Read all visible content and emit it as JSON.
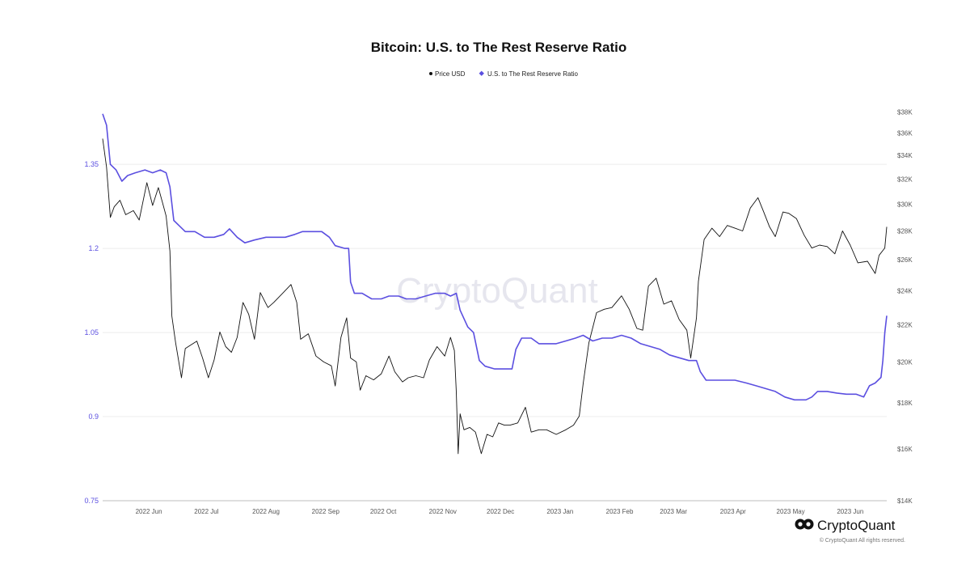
{
  "chart_data": {
    "type": "line",
    "title": "Bitcoin: U.S. to The Rest Reserve Ratio",
    "legend": [
      {
        "name": "Price USD",
        "color": "#111111"
      },
      {
        "name": "U.S. to The Rest Reserve Ratio",
        "color": "#5b4fe0"
      }
    ],
    "x_domain": [
      "2022-05-08",
      "2023-06-20"
    ],
    "x_ticks": [
      {
        "date": "2022-06-01",
        "label": "2022 Jun"
      },
      {
        "date": "2022-07-01",
        "label": "2022 Jul"
      },
      {
        "date": "2022-08-01",
        "label": "2022 Aug"
      },
      {
        "date": "2022-09-01",
        "label": "2022 Sep"
      },
      {
        "date": "2022-10-01",
        "label": "2022 Oct"
      },
      {
        "date": "2022-11-01",
        "label": "2022 Nov"
      },
      {
        "date": "2022-12-01",
        "label": "2022 Dec"
      },
      {
        "date": "2023-01-01",
        "label": "2023 Jan"
      },
      {
        "date": "2023-02-01",
        "label": "2023 Feb"
      },
      {
        "date": "2023-03-01",
        "label": "2023 Mar"
      },
      {
        "date": "2023-04-01",
        "label": "2023 Apr"
      },
      {
        "date": "2023-05-01",
        "label": "2023 May"
      },
      {
        "date": "2023-06-01",
        "label": "2023 Jun"
      }
    ],
    "y_left": {
      "ylim": [
        0.75,
        1.47
      ],
      "ticks": [
        {
          "value": 0.75,
          "label": "0.75"
        },
        {
          "value": 0.9,
          "label": "0.9"
        },
        {
          "value": 1.05,
          "label": "1.05"
        },
        {
          "value": 1.2,
          "label": "1.2"
        },
        {
          "value": 1.35,
          "label": "1.35"
        }
      ],
      "color": "#5b4fe0"
    },
    "y_right": {
      "scale": "log",
      "ylim": [
        14000,
        39500
      ],
      "ticks": [
        {
          "value": 14000,
          "label": "$14K"
        },
        {
          "value": 16000,
          "label": "$16K"
        },
        {
          "value": 18000,
          "label": "$18K"
        },
        {
          "value": 20000,
          "label": "$20K"
        },
        {
          "value": 22000,
          "label": "$22K"
        },
        {
          "value": 24000,
          "label": "$24K"
        },
        {
          "value": 26000,
          "label": "$26K"
        },
        {
          "value": 28000,
          "label": "$28K"
        },
        {
          "value": 30000,
          "label": "$30K"
        },
        {
          "value": 32000,
          "label": "$32K"
        },
        {
          "value": 34000,
          "label": "$34K"
        },
        {
          "value": 36000,
          "label": "$36K"
        },
        {
          "value": 38000,
          "label": "$38K"
        }
      ]
    },
    "grid": "horizontal",
    "legend_position": "top-center",
    "series": [
      {
        "name": "Price USD",
        "axis": "right",
        "color": "#111111",
        "points": [
          [
            "2022-05-08",
            35500
          ],
          [
            "2022-05-10",
            33000
          ],
          [
            "2022-05-12",
            29000
          ],
          [
            "2022-05-14",
            29800
          ],
          [
            "2022-05-17",
            30300
          ],
          [
            "2022-05-20",
            29200
          ],
          [
            "2022-05-24",
            29500
          ],
          [
            "2022-05-27",
            28800
          ],
          [
            "2022-05-31",
            31700
          ],
          [
            "2022-06-03",
            29900
          ],
          [
            "2022-06-06",
            31300
          ],
          [
            "2022-06-08",
            30200
          ],
          [
            "2022-06-10",
            29100
          ],
          [
            "2022-06-12",
            26600
          ],
          [
            "2022-06-13",
            22500
          ],
          [
            "2022-06-15",
            21000
          ],
          [
            "2022-06-18",
            19200
          ],
          [
            "2022-06-20",
            20700
          ],
          [
            "2022-06-23",
            20900
          ],
          [
            "2022-06-26",
            21100
          ],
          [
            "2022-06-29",
            20200
          ],
          [
            "2022-07-02",
            19200
          ],
          [
            "2022-07-05",
            20100
          ],
          [
            "2022-07-08",
            21600
          ],
          [
            "2022-07-11",
            20800
          ],
          [
            "2022-07-14",
            20500
          ],
          [
            "2022-07-17",
            21300
          ],
          [
            "2022-07-20",
            23300
          ],
          [
            "2022-07-23",
            22600
          ],
          [
            "2022-07-26",
            21200
          ],
          [
            "2022-07-29",
            23900
          ],
          [
            "2022-08-02",
            23000
          ],
          [
            "2022-08-05",
            23300
          ],
          [
            "2022-08-10",
            23900
          ],
          [
            "2022-08-14",
            24400
          ],
          [
            "2022-08-17",
            23300
          ],
          [
            "2022-08-19",
            21200
          ],
          [
            "2022-08-23",
            21500
          ],
          [
            "2022-08-27",
            20300
          ],
          [
            "2022-08-31",
            20000
          ],
          [
            "2022-09-04",
            19800
          ],
          [
            "2022-09-06",
            18800
          ],
          [
            "2022-09-09",
            21300
          ],
          [
            "2022-09-12",
            22400
          ],
          [
            "2022-09-14",
            20200
          ],
          [
            "2022-09-17",
            20000
          ],
          [
            "2022-09-19",
            18600
          ],
          [
            "2022-09-22",
            19300
          ],
          [
            "2022-09-26",
            19100
          ],
          [
            "2022-09-30",
            19400
          ],
          [
            "2022-10-04",
            20300
          ],
          [
            "2022-10-07",
            19500
          ],
          [
            "2022-10-11",
            19000
          ],
          [
            "2022-10-14",
            19200
          ],
          [
            "2022-10-18",
            19300
          ],
          [
            "2022-10-22",
            19200
          ],
          [
            "2022-10-25",
            20100
          ],
          [
            "2022-10-29",
            20800
          ],
          [
            "2022-11-02",
            20300
          ],
          [
            "2022-11-05",
            21300
          ],
          [
            "2022-11-07",
            20600
          ],
          [
            "2022-11-08",
            18500
          ],
          [
            "2022-11-09",
            15800
          ],
          [
            "2022-11-10",
            17500
          ],
          [
            "2022-11-12",
            16800
          ],
          [
            "2022-11-15",
            16900
          ],
          [
            "2022-11-18",
            16700
          ],
          [
            "2022-11-21",
            15800
          ],
          [
            "2022-11-24",
            16600
          ],
          [
            "2022-11-27",
            16500
          ],
          [
            "2022-11-30",
            17100
          ],
          [
            "2022-12-03",
            17000
          ],
          [
            "2022-12-06",
            17000
          ],
          [
            "2022-12-10",
            17100
          ],
          [
            "2022-12-14",
            17800
          ],
          [
            "2022-12-17",
            16700
          ],
          [
            "2022-12-21",
            16800
          ],
          [
            "2022-12-25",
            16800
          ],
          [
            "2022-12-30",
            16600
          ],
          [
            "2023-01-04",
            16800
          ],
          [
            "2023-01-08",
            17000
          ],
          [
            "2023-01-11",
            17400
          ],
          [
            "2023-01-13",
            18900
          ],
          [
            "2023-01-16",
            21000
          ],
          [
            "2023-01-20",
            22700
          ],
          [
            "2023-01-24",
            22900
          ],
          [
            "2023-01-28",
            23000
          ],
          [
            "2023-02-02",
            23700
          ],
          [
            "2023-02-06",
            22900
          ],
          [
            "2023-02-10",
            21800
          ],
          [
            "2023-02-13",
            21700
          ],
          [
            "2023-02-16",
            24300
          ],
          [
            "2023-02-20",
            24800
          ],
          [
            "2023-02-24",
            23200
          ],
          [
            "2023-02-28",
            23400
          ],
          [
            "2023-03-04",
            22300
          ],
          [
            "2023-03-08",
            21700
          ],
          [
            "2023-03-10",
            20200
          ],
          [
            "2023-03-13",
            22400
          ],
          [
            "2023-03-14",
            24600
          ],
          [
            "2023-03-17",
            27400
          ],
          [
            "2023-03-21",
            28200
          ],
          [
            "2023-03-25",
            27600
          ],
          [
            "2023-03-29",
            28400
          ],
          [
            "2023-04-02",
            28200
          ],
          [
            "2023-04-06",
            28000
          ],
          [
            "2023-04-10",
            29700
          ],
          [
            "2023-04-14",
            30500
          ],
          [
            "2023-04-17",
            29400
          ],
          [
            "2023-04-20",
            28300
          ],
          [
            "2023-04-23",
            27600
          ],
          [
            "2023-04-27",
            29400
          ],
          [
            "2023-04-30",
            29300
          ],
          [
            "2023-05-04",
            28900
          ],
          [
            "2023-05-08",
            27700
          ],
          [
            "2023-05-12",
            26800
          ],
          [
            "2023-05-16",
            27000
          ],
          [
            "2023-05-20",
            26900
          ],
          [
            "2023-05-24",
            26400
          ],
          [
            "2023-05-28",
            28000
          ],
          [
            "2023-06-01",
            27000
          ],
          [
            "2023-06-05",
            25800
          ],
          [
            "2023-06-10",
            25900
          ],
          [
            "2023-06-14",
            25100
          ],
          [
            "2023-06-16",
            26300
          ],
          [
            "2023-06-19",
            26800
          ],
          [
            "2023-06-20",
            28300
          ]
        ]
      },
      {
        "name": "U.S. to The Rest Reserve Ratio",
        "axis": "left",
        "color": "#5b4fe0",
        "points": [
          [
            "2022-05-08",
            1.44
          ],
          [
            "2022-05-10",
            1.42
          ],
          [
            "2022-05-12",
            1.35
          ],
          [
            "2022-05-15",
            1.34
          ],
          [
            "2022-05-18",
            1.32
          ],
          [
            "2022-05-21",
            1.33
          ],
          [
            "2022-05-25",
            1.335
          ],
          [
            "2022-05-30",
            1.34
          ],
          [
            "2022-06-03",
            1.335
          ],
          [
            "2022-06-07",
            1.34
          ],
          [
            "2022-06-10",
            1.335
          ],
          [
            "2022-06-12",
            1.31
          ],
          [
            "2022-06-14",
            1.25
          ],
          [
            "2022-06-17",
            1.24
          ],
          [
            "2022-06-20",
            1.23
          ],
          [
            "2022-06-25",
            1.23
          ],
          [
            "2022-06-30",
            1.22
          ],
          [
            "2022-07-05",
            1.22
          ],
          [
            "2022-07-10",
            1.225
          ],
          [
            "2022-07-13",
            1.235
          ],
          [
            "2022-07-17",
            1.22
          ],
          [
            "2022-07-21",
            1.21
          ],
          [
            "2022-07-26",
            1.215
          ],
          [
            "2022-08-01",
            1.22
          ],
          [
            "2022-08-06",
            1.22
          ],
          [
            "2022-08-11",
            1.22
          ],
          [
            "2022-08-16",
            1.225
          ],
          [
            "2022-08-20",
            1.23
          ],
          [
            "2022-08-25",
            1.23
          ],
          [
            "2022-08-30",
            1.23
          ],
          [
            "2022-09-03",
            1.22
          ],
          [
            "2022-09-06",
            1.205
          ],
          [
            "2022-09-11",
            1.2
          ],
          [
            "2022-09-13",
            1.2
          ],
          [
            "2022-09-14",
            1.14
          ],
          [
            "2022-09-16",
            1.12
          ],
          [
            "2022-09-20",
            1.12
          ],
          [
            "2022-09-25",
            1.11
          ],
          [
            "2022-09-30",
            1.11
          ],
          [
            "2022-10-04",
            1.115
          ],
          [
            "2022-10-09",
            1.115
          ],
          [
            "2022-10-13",
            1.11
          ],
          [
            "2022-10-18",
            1.11
          ],
          [
            "2022-10-23",
            1.115
          ],
          [
            "2022-10-28",
            1.12
          ],
          [
            "2022-11-02",
            1.12
          ],
          [
            "2022-11-05",
            1.115
          ],
          [
            "2022-11-08",
            1.12
          ],
          [
            "2022-11-10",
            1.09
          ],
          [
            "2022-11-14",
            1.06
          ],
          [
            "2022-11-17",
            1.05
          ],
          [
            "2022-11-20",
            1.0
          ],
          [
            "2022-11-23",
            0.99
          ],
          [
            "2022-11-28",
            0.985
          ],
          [
            "2022-12-03",
            0.985
          ],
          [
            "2022-12-07",
            0.985
          ],
          [
            "2022-12-09",
            1.02
          ],
          [
            "2022-12-12",
            1.04
          ],
          [
            "2022-12-17",
            1.04
          ],
          [
            "2022-12-21",
            1.03
          ],
          [
            "2022-12-25",
            1.03
          ],
          [
            "2022-12-30",
            1.03
          ],
          [
            "2023-01-04",
            1.035
          ],
          [
            "2023-01-09",
            1.04
          ],
          [
            "2023-01-13",
            1.045
          ],
          [
            "2023-01-18",
            1.035
          ],
          [
            "2023-01-23",
            1.04
          ],
          [
            "2023-01-28",
            1.04
          ],
          [
            "2023-02-02",
            1.045
          ],
          [
            "2023-02-07",
            1.04
          ],
          [
            "2023-02-12",
            1.03
          ],
          [
            "2023-02-17",
            1.025
          ],
          [
            "2023-02-22",
            1.02
          ],
          [
            "2023-02-27",
            1.01
          ],
          [
            "2023-03-04",
            1.005
          ],
          [
            "2023-03-09",
            1.0
          ],
          [
            "2023-03-13",
            1.0
          ],
          [
            "2023-03-15",
            0.98
          ],
          [
            "2023-03-18",
            0.965
          ],
          [
            "2023-03-23",
            0.965
          ],
          [
            "2023-03-28",
            0.965
          ],
          [
            "2023-04-02",
            0.965
          ],
          [
            "2023-04-08",
            0.96
          ],
          [
            "2023-04-13",
            0.955
          ],
          [
            "2023-04-18",
            0.95
          ],
          [
            "2023-04-23",
            0.945
          ],
          [
            "2023-04-28",
            0.935
          ],
          [
            "2023-05-03",
            0.93
          ],
          [
            "2023-05-09",
            0.93
          ],
          [
            "2023-05-12",
            0.935
          ],
          [
            "2023-05-15",
            0.945
          ],
          [
            "2023-05-20",
            0.945
          ],
          [
            "2023-05-25",
            0.942
          ],
          [
            "2023-05-30",
            0.94
          ],
          [
            "2023-06-04",
            0.94
          ],
          [
            "2023-06-08",
            0.935
          ],
          [
            "2023-06-11",
            0.955
          ],
          [
            "2023-06-14",
            0.96
          ],
          [
            "2023-06-17",
            0.97
          ],
          [
            "2023-06-18",
            1.0
          ],
          [
            "2023-06-19",
            1.05
          ],
          [
            "2023-06-20",
            1.08
          ]
        ]
      }
    ]
  },
  "watermark": "CryptoQuant",
  "brand": {
    "name": "CryptoQuant",
    "copyright": "© CryptoQuant All rights reserved."
  }
}
